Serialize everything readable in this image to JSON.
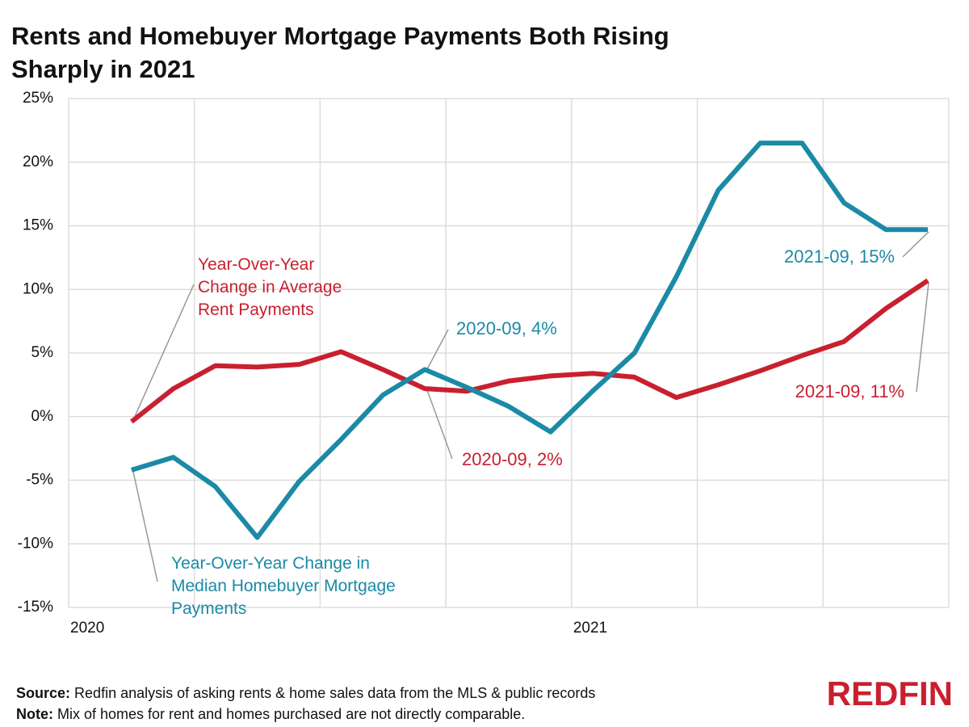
{
  "chart_data": {
    "type": "line",
    "title": "Rents and Homebuyer Mortgage Payments Both Rising Sharply in 2021",
    "x": [
      "2020-02",
      "2020-03",
      "2020-04",
      "2020-05",
      "2020-06",
      "2020-07",
      "2020-08",
      "2020-09",
      "2020-10",
      "2020-11",
      "2020-12",
      "2021-01",
      "2021-02",
      "2021-03",
      "2021-04",
      "2021-05",
      "2021-06",
      "2021-07",
      "2021-08",
      "2021-09"
    ],
    "series": [
      {
        "name": "Year-Over-Year Change in Average Rent Payments",
        "color": "#c8202f",
        "values": [
          -0.4,
          2.2,
          4.0,
          3.9,
          4.1,
          5.1,
          3.7,
          2.2,
          2.0,
          2.8,
          3.2,
          3.4,
          3.1,
          1.5,
          2.5,
          3.6,
          4.8,
          5.9,
          8.5,
          10.7
        ]
      },
      {
        "name": "Year-Over-Year Change in Median Homebuyer Mortgage Payments",
        "color": "#1b8aa6",
        "values": [
          -4.2,
          -3.2,
          -5.5,
          -9.5,
          -5.1,
          -1.8,
          1.7,
          3.7,
          2.3,
          0.8,
          -1.2,
          2.0,
          5.0,
          11.0,
          17.8,
          21.5,
          21.5,
          16.8,
          14.7,
          14.7
        ]
      }
    ],
    "annotations": [
      "2020-09, 4%",
      "2020-09, 2%",
      "2021-09, 15%",
      "2021-09, 11%"
    ],
    "xlim": [
      "2020-01",
      "2021-10"
    ],
    "xticks": [
      {
        "value": "2020-01",
        "label": "2020"
      },
      {
        "value": "2020-04",
        "label": null
      },
      {
        "value": "2020-07",
        "label": null
      },
      {
        "value": "2020-10",
        "label": null
      },
      {
        "value": "2021-01",
        "label": "2021"
      },
      {
        "value": "2021-04",
        "label": null
      },
      {
        "value": "2021-07",
        "label": null
      },
      {
        "value": "2021-10",
        "label": null
      }
    ],
    "ylim": [
      -15,
      25
    ],
    "yticks": [
      {
        "value": -15,
        "label": "-15%"
      },
      {
        "value": -10,
        "label": "-10%"
      },
      {
        "value": -5,
        "label": "-5%"
      },
      {
        "value": 0,
        "label": "0%"
      },
      {
        "value": 5,
        "label": "5%"
      },
      {
        "value": 10,
        "label": "10%"
      },
      {
        "value": 15,
        "label": "15%"
      },
      {
        "value": 20,
        "label": "20%"
      },
      {
        "value": 25,
        "label": "25%"
      }
    ],
    "grid": true
  },
  "footer": {
    "source_label": "Source:",
    "source": "Redfin analysis of asking rents & home sales data from the MLS & public records",
    "note_label": "Note:",
    "note": "Mix of homes for rent and homes purchased are not directly comparable.",
    "logo": "REDFIN"
  }
}
